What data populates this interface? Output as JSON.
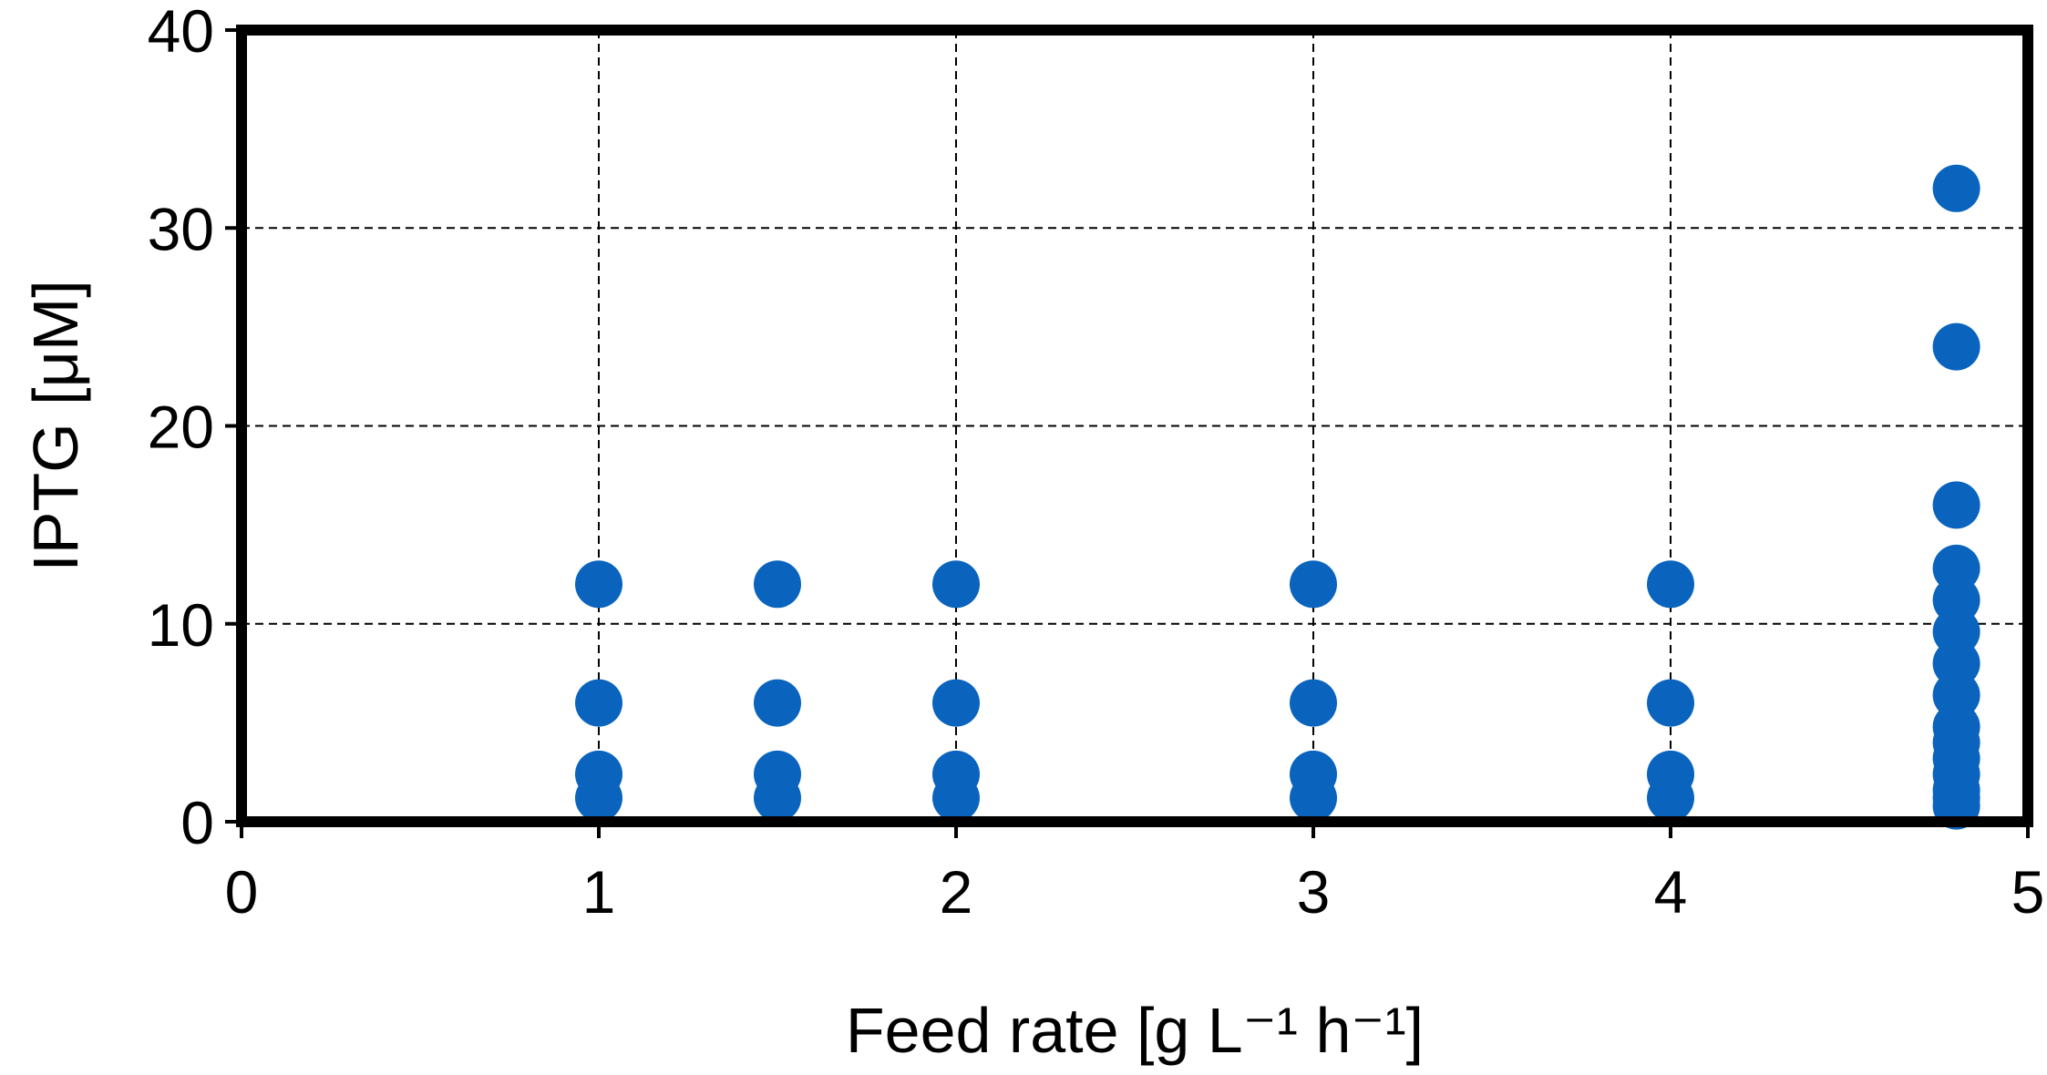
{
  "chart_data": {
    "type": "scatter",
    "title": "",
    "xlabel": "Feed rate [g L⁻¹ h⁻¹]",
    "ylabel": "IPTG [μM]",
    "xlim": [
      0,
      5
    ],
    "ylim": [
      0,
      40
    ],
    "xticks": [
      0,
      1,
      2,
      3,
      4,
      5
    ],
    "yticks": [
      0,
      10,
      20,
      30,
      40
    ],
    "grid": true,
    "legend": "none",
    "marker_color": "#0a64be",
    "series": [
      {
        "points": [
          {
            "x": 1.0,
            "y": 12
          },
          {
            "x": 1.0,
            "y": 6
          },
          {
            "x": 1.0,
            "y": 2.4
          },
          {
            "x": 1.0,
            "y": 1.2
          },
          {
            "x": 1.5,
            "y": 12
          },
          {
            "x": 1.5,
            "y": 6
          },
          {
            "x": 1.5,
            "y": 2.4
          },
          {
            "x": 1.5,
            "y": 1.2
          },
          {
            "x": 2.0,
            "y": 12
          },
          {
            "x": 2.0,
            "y": 6
          },
          {
            "x": 2.0,
            "y": 2.4
          },
          {
            "x": 2.0,
            "y": 1.2
          },
          {
            "x": 3.0,
            "y": 12
          },
          {
            "x": 3.0,
            "y": 6
          },
          {
            "x": 3.0,
            "y": 2.4
          },
          {
            "x": 3.0,
            "y": 1.2
          },
          {
            "x": 4.0,
            "y": 12
          },
          {
            "x": 4.0,
            "y": 6
          },
          {
            "x": 4.0,
            "y": 2.4
          },
          {
            "x": 4.0,
            "y": 1.2
          },
          {
            "x": 4.8,
            "y": 32
          },
          {
            "x": 4.8,
            "y": 24
          },
          {
            "x": 4.8,
            "y": 16
          },
          {
            "x": 4.8,
            "y": 12.8
          },
          {
            "x": 4.8,
            "y": 11.2
          },
          {
            "x": 4.8,
            "y": 9.6
          },
          {
            "x": 4.8,
            "y": 8
          },
          {
            "x": 4.8,
            "y": 6.4
          },
          {
            "x": 4.8,
            "y": 4.8
          },
          {
            "x": 4.8,
            "y": 4
          },
          {
            "x": 4.8,
            "y": 3.2
          },
          {
            "x": 4.8,
            "y": 2.4
          },
          {
            "x": 4.8,
            "y": 1.6
          },
          {
            "x": 4.8,
            "y": 1.2
          },
          {
            "x": 4.8,
            "y": 0.8
          }
        ]
      }
    ]
  }
}
